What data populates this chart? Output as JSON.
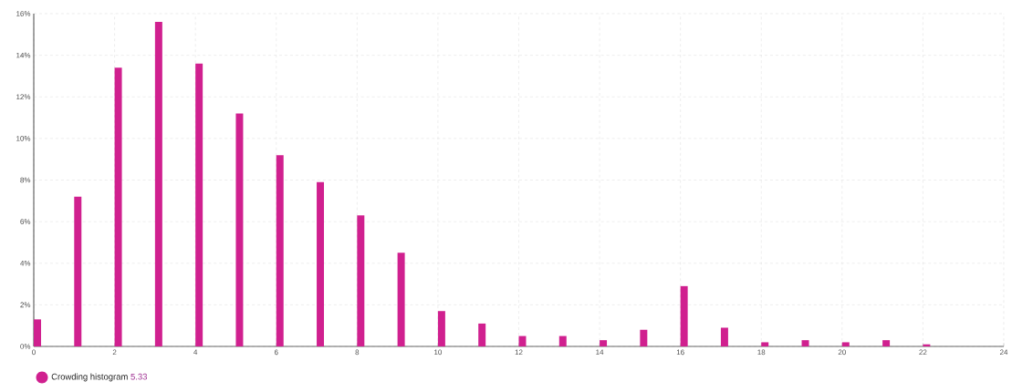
{
  "chart_data": {
    "type": "bar",
    "x": [
      0,
      1,
      2,
      3,
      4,
      5,
      6,
      7,
      8,
      9,
      10,
      11,
      12,
      13,
      14,
      15,
      16,
      17,
      18,
      19,
      20,
      21,
      22
    ],
    "series": [
      {
        "name": "Crowding histogram",
        "color": "#d0208f",
        "values": [
          1.3,
          7.2,
          13.4,
          15.6,
          13.6,
          11.2,
          9.2,
          7.9,
          6.3,
          4.5,
          1.7,
          1.1,
          0.5,
          0.5,
          0.3,
          0.8,
          2.9,
          0.9,
          0.2,
          0.3,
          0.2,
          0.3,
          0.1
        ]
      }
    ],
    "annotations": [
      "5.33"
    ],
    "xlim": [
      0,
      24
    ],
    "xticks": [
      0,
      2,
      4,
      6,
      8,
      10,
      12,
      14,
      16,
      18,
      20,
      22,
      24
    ],
    "ylim": [
      0,
      16
    ],
    "yticks": [
      {
        "value": 0,
        "label": "0%"
      },
      {
        "value": 2,
        "label": "2%"
      },
      {
        "value": 4,
        "label": "4%"
      },
      {
        "value": 6,
        "label": "6%"
      },
      {
        "value": 8,
        "label": "8%"
      },
      {
        "value": 10,
        "label": "10%"
      },
      {
        "value": 12,
        "label": "12%"
      },
      {
        "value": 14,
        "label": "14%"
      },
      {
        "value": 16,
        "label": "16%"
      }
    ],
    "grid": true,
    "legend": "bottom left"
  }
}
